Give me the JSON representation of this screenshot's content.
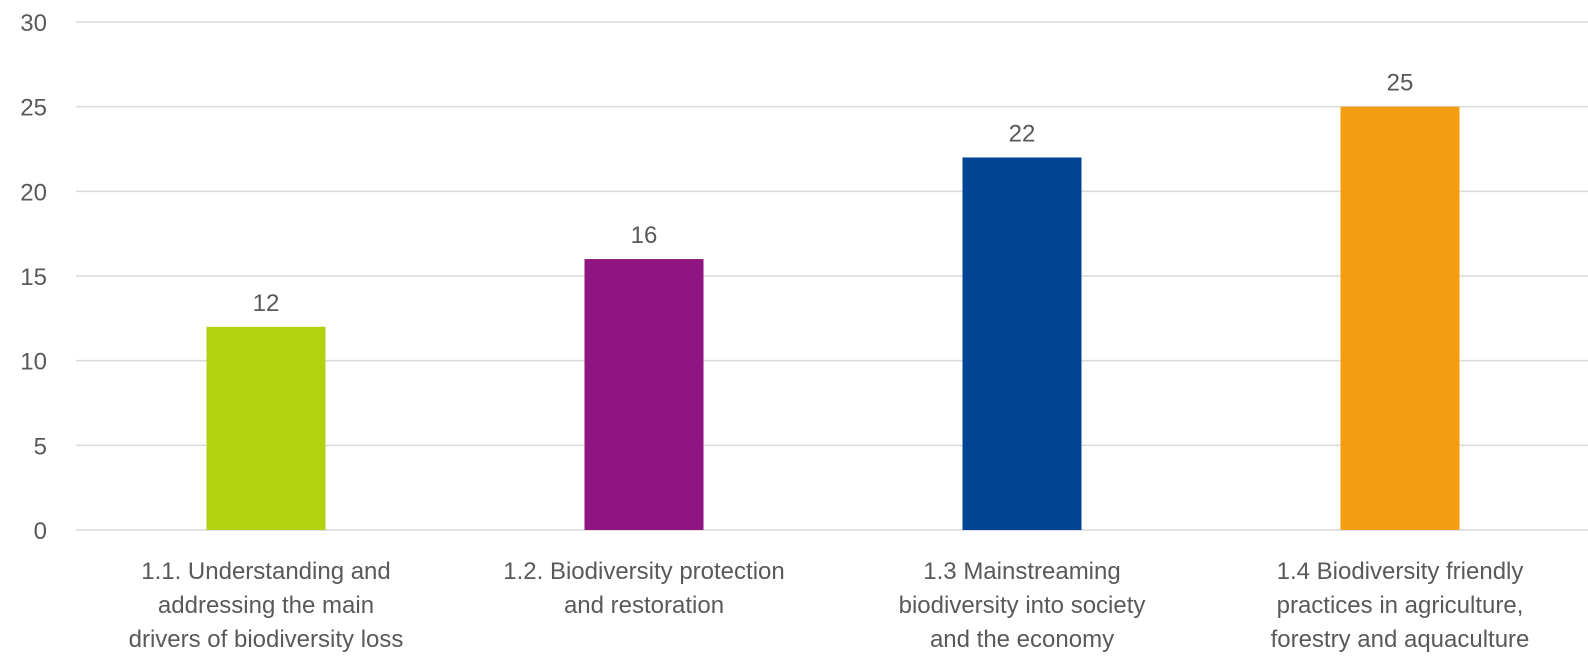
{
  "chart_data": {
    "type": "bar",
    "categories": [
      "1.1. Understanding and addressing the main drivers of biodiversity loss",
      "1.2. Biodiversity protection and restoration",
      "1.3  Mainstreaming biodiversity into society and the economy",
      "1.4 Biodiversity friendly practices in agriculture, forestry and aquaculture"
    ],
    "category_label_lines": [
      [
        "1.1. Understanding and",
        "addressing the main",
        "drivers of biodiversity loss"
      ],
      [
        "1.2. Biodiversity protection",
        "and restoration"
      ],
      [
        "1.3  Mainstreaming",
        "biodiversity into society",
        "and the economy"
      ],
      [
        "1.4 Biodiversity friendly",
        "practices in agriculture,",
        "forestry and aquaculture"
      ]
    ],
    "values": [
      12,
      16,
      22,
      25
    ],
    "data_labels": [
      "12",
      "16",
      "22",
      "25"
    ],
    "bar_colors": [
      "#b2d10e",
      "#8f1680",
      "#004494",
      "#f29d12"
    ],
    "title": "",
    "xlabel": "",
    "ylabel": "",
    "ylim": [
      0,
      30
    ],
    "yticks": [
      0,
      5,
      10,
      15,
      20,
      25,
      30
    ],
    "grid": true,
    "legend": "none"
  },
  "colors": {
    "gridline": "#d9d9d9",
    "text": "#595959",
    "background": "#ffffff"
  }
}
